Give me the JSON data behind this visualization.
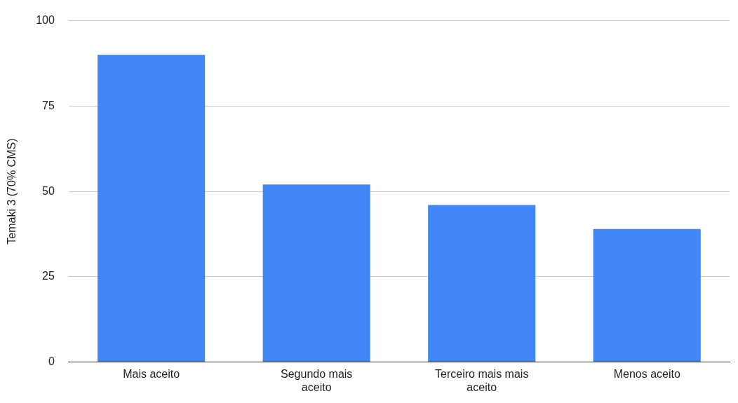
{
  "chart_data": {
    "type": "bar",
    "ylabel": "Temaki 3 (70% CMS)",
    "categories": [
      "Mais aceito",
      "Segundo mais aceito",
      "Terceiro mais mais aceito",
      "Menos aceito"
    ],
    "values": [
      90,
      52,
      46,
      39
    ],
    "color": "#4285f4",
    "ylim": [
      0,
      100
    ],
    "yticks": [
      0,
      25,
      50,
      75,
      100
    ],
    "grid": "y",
    "legend": false
  }
}
